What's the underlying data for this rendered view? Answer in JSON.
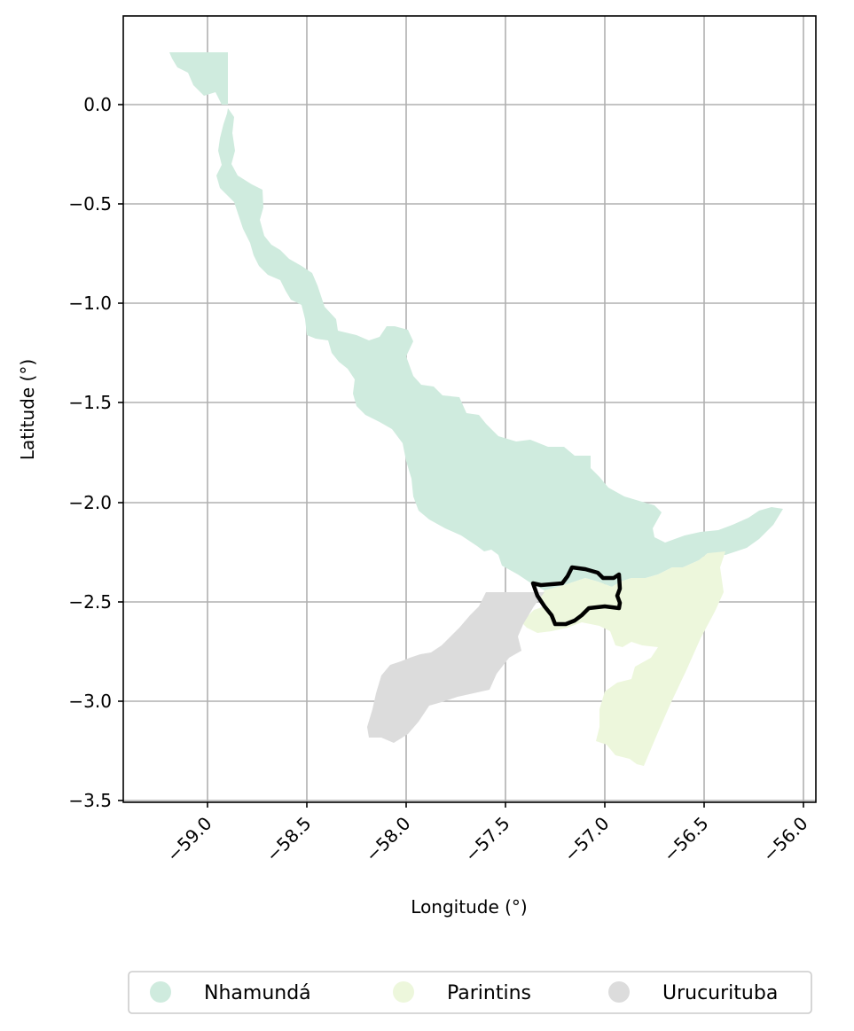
{
  "map": {
    "xlabel": "Longitude (°)",
    "ylabel": "Latitude (°)",
    "x_ticks": [
      "−59.0",
      "−58.5",
      "−58.0",
      "−57.5",
      "−57.0",
      "−56.5",
      "−56.0"
    ],
    "y_ticks": [
      "0.0",
      "−0.5",
      "−1.0",
      "−1.5",
      "−2.0",
      "−2.5",
      "−3.0",
      "−3.5"
    ],
    "x_range": [
      -59.43,
      -55.94
    ],
    "y_range": [
      -3.51,
      0.45
    ],
    "grid": true,
    "legend_position": "bottom-center",
    "regions": [
      {
        "name": "Nhamundá",
        "color": "#cfebde"
      },
      {
        "name": "Parintins",
        "color": "#edf7dc"
      },
      {
        "name": "Urucurituba",
        "color": "#dcdcdc"
      }
    ],
    "highlight_outline_color": "#000000"
  }
}
